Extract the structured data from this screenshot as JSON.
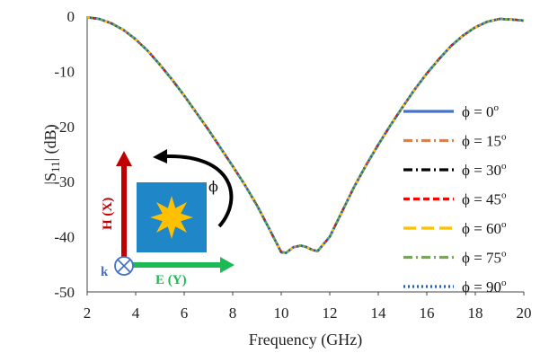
{
  "chart_data": {
    "type": "line",
    "xlabel": "Frequency (GHz)",
    "ylabel": "|S",
    "ylabel_sub": "11",
    "ylabel_tail": "| (dB)",
    "xlim": [
      2,
      20
    ],
    "ylim": [
      -50,
      0
    ],
    "xticks": [
      2,
      4,
      6,
      8,
      10,
      12,
      14,
      16,
      18,
      20
    ],
    "yticks": [
      0,
      -10,
      -20,
      -30,
      -40,
      -50
    ],
    "grid": false,
    "legend_position": "right",
    "x": [
      2,
      2.5,
      3,
      3.5,
      4,
      4.5,
      5,
      5.5,
      6,
      6.5,
      7,
      7.5,
      8,
      8.5,
      9,
      9.5,
      10,
      10.2,
      10.5,
      10.8,
      11,
      11.3,
      11.5,
      12,
      12.5,
      13,
      13.5,
      14,
      14.5,
      15,
      15.5,
      16,
      16.5,
      17,
      17.5,
      18,
      18.5,
      19,
      19.5,
      20
    ],
    "series": [
      {
        "name": "ϕ = 0",
        "color": "#4472C4",
        "dash": "solid"
      },
      {
        "name": "ϕ = 15",
        "color": "#ED7D31",
        "dash": "dashdot"
      },
      {
        "name": "ϕ = 30",
        "color": "#000000",
        "dash": "dashdot"
      },
      {
        "name": "ϕ = 45",
        "color": "#FF0000",
        "dash": "dash"
      },
      {
        "name": "ϕ = 60",
        "color": "#FFC000",
        "dash": "longdash"
      },
      {
        "name": "ϕ = 75",
        "color": "#70AD47",
        "dash": "dashdot"
      },
      {
        "name": "ϕ = 90",
        "color": "#1F5FBF",
        "dash": "dot"
      }
    ],
    "y": [
      -0.2,
      -0.5,
      -1.3,
      -2.5,
      -4.2,
      -6.3,
      -8.8,
      -11.5,
      -14.4,
      -17.5,
      -20.6,
      -23.9,
      -27.2,
      -30.6,
      -34.3,
      -38.5,
      -42.8,
      -42.9,
      -41.9,
      -41.6,
      -41.8,
      -42.4,
      -42.6,
      -40.0,
      -35.5,
      -31.0,
      -27.0,
      -23.3,
      -19.8,
      -16.5,
      -13.3,
      -10.4,
      -7.8,
      -5.4,
      -3.5,
      -2.0,
      -1.0,
      -0.5,
      -0.6,
      -0.8
    ],
    "legend_suffix": "o",
    "inset": {
      "h_label": "H (X)",
      "e_label": "E (Y)",
      "k_label": "k",
      "phi_label": "ϕ",
      "h_color": "#C00000",
      "e_color": "#1DB954",
      "k_color": "#4472C4",
      "patch_color": "#1F86C8",
      "star_color": "#FFC000"
    }
  }
}
